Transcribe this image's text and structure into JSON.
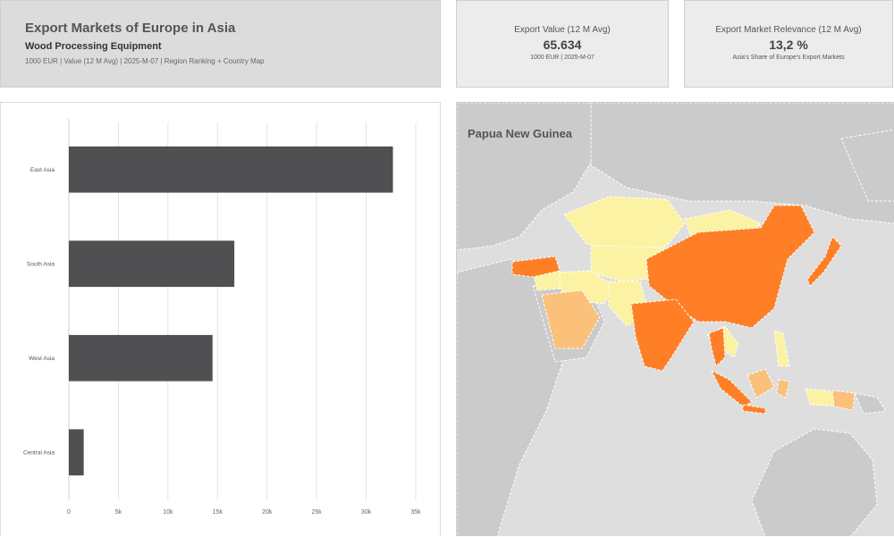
{
  "header": {
    "title": "Export Markets of Europe in Asia",
    "subtitle": "Wood Processing Equipment",
    "meta": "1000 EUR | Value (12 M Avg) | 2025-M-07 | Region Ranking + Country Map"
  },
  "kpis": [
    {
      "label": "Export Value (12 M Avg)",
      "value": "65.634",
      "sub": "1000 EUR | 2025-M-07"
    },
    {
      "label": "Export Market Relevance (12 M Avg)",
      "value": "13,2 %",
      "sub": "Asia's Share of Europe's Export Markets"
    }
  ],
  "map": {
    "title": "Papua New Guinea",
    "colors": {
      "high": "#ff7f27",
      "medium": "#fbc07a",
      "low": "#fbf3a3",
      "land": "#cbcbcb",
      "sea": "#dedede",
      "border": "#ffffff"
    }
  },
  "chart_data": {
    "type": "bar",
    "orientation": "horizontal",
    "categories": [
      "East Asia",
      "South Asia",
      "West Asia",
      "Central Asia"
    ],
    "values": [
      32700,
      16700,
      14500,
      1500
    ],
    "xlim": [
      0,
      35000
    ],
    "xticks": [
      0,
      5000,
      10000,
      15000,
      20000,
      25000,
      30000,
      35000
    ],
    "xtick_labels": [
      "0",
      "5k",
      "10k",
      "15k",
      "20k",
      "25k",
      "30k",
      "35k"
    ],
    "grid": true,
    "bar_color": "#505052"
  }
}
